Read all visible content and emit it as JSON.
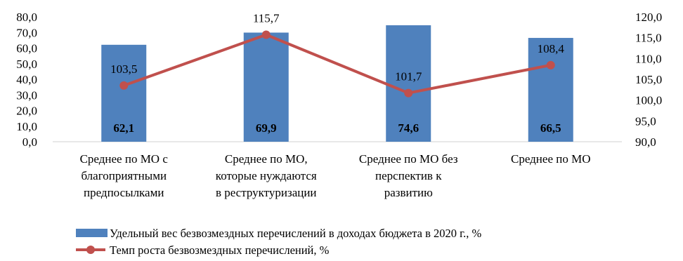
{
  "chart_data": {
    "type": "bar",
    "categories": [
      [
        "Среднее по МО с",
        "благоприятными",
        "предпосылками"
      ],
      [
        "Среднее по МО,",
        "которые нуждаются",
        "в реструктуризации"
      ],
      [
        "Среднее по МО без",
        "перспектив к",
        "развитию"
      ],
      [
        "Среднее по МО"
      ]
    ],
    "series": [
      {
        "name": "Удельный вес безвозмездных перечислений в доходах бюджета в 2020 г., %",
        "type": "bar",
        "axis": "left",
        "color": "#4f81bd",
        "values": [
          62.1,
          69.9,
          74.6,
          66.5
        ],
        "labels": [
          "62,1",
          "69,9",
          "74,6",
          "66,5"
        ]
      },
      {
        "name": "Темп роста безвозмездных перечислений, %",
        "type": "line",
        "axis": "right",
        "color": "#c0504d",
        "values": [
          103.5,
          115.7,
          101.7,
          108.4
        ],
        "labels": [
          "103,5",
          "115,7",
          "101,7",
          "108,4"
        ]
      }
    ],
    "y_left": {
      "min": 0,
      "max": 80,
      "step": 10,
      "ticks": [
        "0,0",
        "10,0",
        "20,0",
        "30,0",
        "40,0",
        "50,0",
        "60,0",
        "70,0",
        "80,0"
      ]
    },
    "y_right": {
      "min": 90,
      "max": 120,
      "step": 5,
      "ticks": [
        "90,0",
        "95,0",
        "100,0",
        "105,0",
        "110,0",
        "115,0",
        "120,0"
      ]
    },
    "grid": false,
    "legend": "bottom"
  }
}
